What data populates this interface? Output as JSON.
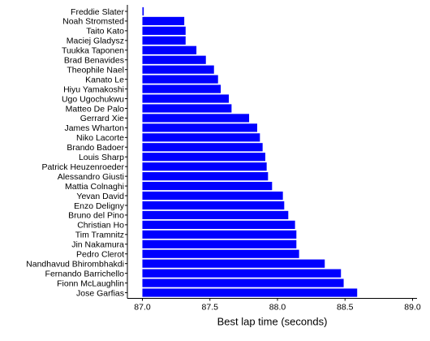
{
  "chart_data": {
    "type": "bar",
    "orientation": "horizontal",
    "title": "",
    "xlabel": "Best lap time (seconds)",
    "ylabel": "",
    "xlim": [
      87.0,
      89.05
    ],
    "xticks": [
      "87.0",
      "87.5",
      "88.0",
      "88.5",
      "89.0"
    ],
    "bar_color": "#0000ff",
    "grid": false,
    "categories": [
      "Freddie Slater",
      "Noah Stromsted",
      "Taito Kato",
      "Maciej Gladysz",
      "Tuukka Taponen",
      "Brad Benavides",
      "Theophile Nael",
      "Kanato Le",
      "Hiyu Yamakoshi",
      "Ugo Ugochukwu",
      "Matteo De Palo",
      "Gerrard Xie",
      "James Wharton",
      "Niko Lacorte",
      "Brando Badoer",
      "Louis Sharp",
      "Patrick Heuzenroeder",
      "Alessandro Giusti",
      "Mattia Colnaghi",
      "Yevan David",
      "Enzo Deligny",
      "Bruno del Pino",
      "Christian Ho",
      "Tim Tramnitz",
      "Jin Nakamura",
      "Pedro Clerot",
      "Nandhavud Bhirombhakdi",
      "Fernando Barrichello",
      "Fionn McLaughlin",
      "Jose Garfias"
    ],
    "values": [
      87.01,
      87.31,
      87.32,
      87.32,
      87.4,
      87.47,
      87.53,
      87.56,
      87.58,
      87.64,
      87.66,
      87.79,
      87.85,
      87.87,
      87.89,
      87.91,
      87.92,
      87.93,
      87.96,
      88.04,
      88.05,
      88.08,
      88.13,
      88.14,
      88.14,
      88.16,
      88.35,
      88.47,
      88.49,
      88.59
    ]
  }
}
